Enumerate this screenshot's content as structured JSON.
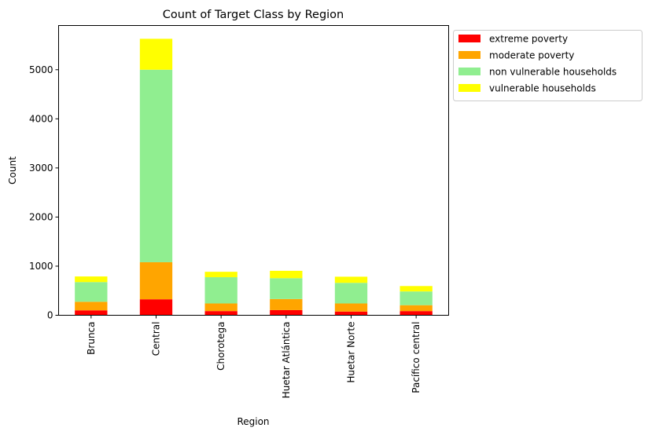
{
  "chart_data": {
    "type": "bar",
    "stacked": true,
    "title": "Count of Target Class by Region",
    "xlabel": "Region",
    "ylabel": "Count",
    "categories": [
      "Brunca",
      "Central",
      "Chorotega",
      "Huetar Atlántica",
      "Huetar Norte",
      "Pacífico central"
    ],
    "series": [
      {
        "name": "extreme poverty",
        "color": "#ff0000",
        "values": [
          100,
          325,
          85,
          105,
          75,
          85
        ]
      },
      {
        "name": "moderate poverty",
        "color": "#ffa500",
        "values": [
          175,
          755,
          155,
          225,
          165,
          120
        ]
      },
      {
        "name": "non vulnerable households",
        "color": "#90ee90",
        "values": [
          400,
          3920,
          535,
          425,
          420,
          280
        ]
      },
      {
        "name": "vulnerable households",
        "color": "#ffff00",
        "values": [
          115,
          630,
          110,
          150,
          125,
          110
        ]
      }
    ],
    "ylim": [
      0,
      5900
    ],
    "yticks": [
      0,
      1000,
      2000,
      3000,
      4000,
      5000
    ],
    "legend_position": "outside-top-right",
    "grid": false
  }
}
